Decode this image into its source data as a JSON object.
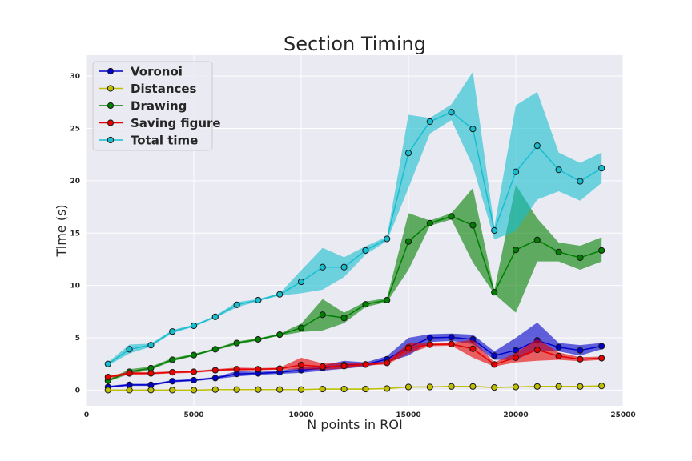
{
  "chart_data": {
    "type": "line",
    "title": "Section Timing",
    "xlabel": "N points in ROI",
    "ylabel": "Time (s)",
    "xlim": [
      0,
      25000
    ],
    "ylim": [
      -1.5,
      32
    ],
    "xticks": [
      0,
      5000,
      10000,
      15000,
      20000,
      25000
    ],
    "yticks": [
      0,
      5,
      10,
      15,
      20,
      25,
      30
    ],
    "grid": true,
    "legend_position": "top-left",
    "x": [
      1000,
      2000,
      3000,
      4000,
      5000,
      6000,
      7000,
      8000,
      9000,
      10000,
      11000,
      12000,
      13000,
      14000,
      15000,
      16000,
      17000,
      18000,
      19000,
      20000,
      21000,
      22000,
      23000,
      24000
    ],
    "series": [
      {
        "name": "Voronoi",
        "color": "#0000cc",
        "values": [
          0.3,
          0.5,
          0.5,
          0.85,
          0.95,
          1.15,
          1.55,
          1.6,
          1.7,
          1.9,
          2.1,
          2.4,
          2.45,
          2.95,
          4.1,
          5.0,
          5.05,
          4.85,
          3.3,
          3.8,
          4.75,
          4.1,
          3.8,
          4.2
        ],
        "lower": [
          0.2,
          0.4,
          0.4,
          0.75,
          0.85,
          1.05,
          1.3,
          1.45,
          1.55,
          1.65,
          1.85,
          2.05,
          2.25,
          2.65,
          3.3,
          4.6,
          4.7,
          4.4,
          2.9,
          2.9,
          3.8,
          3.7,
          3.3,
          3.9
        ],
        "upper": [
          0.4,
          0.6,
          0.6,
          0.95,
          1.05,
          1.25,
          1.8,
          1.75,
          1.85,
          2.15,
          2.35,
          2.8,
          2.65,
          3.25,
          5.0,
          5.35,
          5.4,
          5.3,
          3.7,
          5.0,
          6.45,
          4.5,
          4.3,
          4.5
        ]
      },
      {
        "name": "Distances",
        "color": "#bfbf00",
        "values": [
          0.0,
          0.0,
          0.0,
          0.0,
          0.0,
          0.05,
          0.05,
          0.05,
          0.05,
          0.05,
          0.1,
          0.1,
          0.1,
          0.15,
          0.3,
          0.3,
          0.35,
          0.35,
          0.25,
          0.3,
          0.35,
          0.35,
          0.35,
          0.4
        ],
        "lower": [
          -0.05,
          -0.05,
          -0.05,
          -0.05,
          -0.05,
          0.0,
          0.0,
          0.0,
          0.0,
          0.0,
          0.05,
          0.05,
          0.05,
          0.1,
          0.25,
          0.25,
          0.3,
          0.3,
          0.2,
          0.25,
          0.3,
          0.3,
          0.3,
          0.35
        ],
        "upper": [
          0.05,
          0.05,
          0.05,
          0.05,
          0.05,
          0.1,
          0.1,
          0.1,
          0.1,
          0.1,
          0.15,
          0.15,
          0.15,
          0.2,
          0.35,
          0.35,
          0.4,
          0.4,
          0.3,
          0.35,
          0.4,
          0.4,
          0.4,
          0.45
        ]
      },
      {
        "name": "Drawing",
        "color": "#007f00",
        "values": [
          0.9,
          1.75,
          2.1,
          2.9,
          3.35,
          3.9,
          4.5,
          4.85,
          5.3,
          5.95,
          7.2,
          6.9,
          8.2,
          8.6,
          14.2,
          15.95,
          16.6,
          15.75,
          9.35,
          13.4,
          14.35,
          13.2,
          12.65,
          13.35
        ],
        "lower": [
          0.8,
          1.55,
          1.95,
          2.75,
          3.25,
          3.8,
          4.35,
          4.75,
          5.2,
          5.55,
          5.7,
          6.4,
          7.95,
          8.4,
          11.5,
          15.7,
          16.3,
          12.2,
          9.2,
          7.4,
          12.3,
          12.3,
          11.5,
          12.3
        ],
        "upper": [
          1.0,
          2.0,
          2.25,
          3.05,
          3.45,
          4.0,
          4.65,
          4.95,
          5.4,
          6.35,
          8.7,
          7.4,
          8.45,
          8.8,
          16.9,
          16.2,
          16.9,
          19.3,
          9.5,
          19.6,
          16.4,
          14.1,
          13.8,
          14.6
        ]
      },
      {
        "name": "Saving figure",
        "color": "#e60000",
        "values": [
          1.25,
          1.6,
          1.6,
          1.7,
          1.75,
          1.9,
          2.0,
          2.0,
          2.05,
          2.4,
          2.25,
          2.3,
          2.45,
          2.6,
          4.0,
          4.35,
          4.4,
          3.95,
          2.45,
          3.1,
          3.85,
          3.25,
          2.95,
          3.05
        ],
        "lower": [
          1.15,
          1.45,
          1.5,
          1.6,
          1.65,
          1.8,
          1.85,
          1.9,
          1.95,
          2.0,
          1.95,
          2.05,
          2.35,
          2.45,
          3.5,
          4.2,
          4.25,
          3.1,
          2.25,
          2.65,
          2.8,
          2.9,
          2.75,
          2.9
        ],
        "upper": [
          1.35,
          1.75,
          1.7,
          1.8,
          1.85,
          2.0,
          2.15,
          2.1,
          2.15,
          3.1,
          2.55,
          2.55,
          2.55,
          2.75,
          4.5,
          4.5,
          4.55,
          4.8,
          2.65,
          3.55,
          4.9,
          3.6,
          3.15,
          3.2
        ]
      },
      {
        "name": "Total time",
        "color": "#17becf",
        "values": [
          2.5,
          3.9,
          4.3,
          5.6,
          6.15,
          7.0,
          8.15,
          8.6,
          9.15,
          10.35,
          11.75,
          11.75,
          13.35,
          14.45,
          22.65,
          25.65,
          26.55,
          24.95,
          15.25,
          20.85,
          23.35,
          21.05,
          19.95,
          21.2
        ],
        "lower": [
          2.35,
          3.5,
          4.15,
          5.45,
          6.05,
          6.9,
          7.9,
          8.5,
          9.05,
          9.25,
          9.6,
          10.8,
          12.95,
          14.25,
          19.3,
          24.5,
          25.8,
          21.4,
          14.4,
          15.2,
          18.2,
          19.0,
          18.1,
          19.8
        ],
        "upper": [
          2.65,
          4.35,
          4.45,
          5.75,
          6.25,
          7.1,
          8.4,
          8.7,
          9.25,
          11.45,
          13.6,
          12.7,
          13.75,
          14.65,
          26.3,
          26.0,
          27.3,
          30.4,
          15.6,
          27.2,
          28.5,
          22.7,
          21.7,
          22.7
        ]
      }
    ]
  }
}
